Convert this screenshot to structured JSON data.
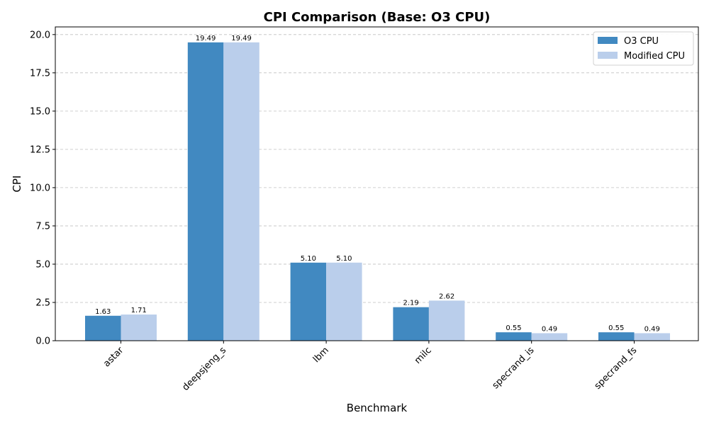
{
  "chart_data": {
    "type": "bar",
    "title": "CPI Comparison (Base: O3 CPU)",
    "xlabel": "Benchmark",
    "ylabel": "CPI",
    "categories": [
      "astar",
      "deepsjeng_s",
      "lbm",
      "milc",
      "specrand_is",
      "specrand_fs"
    ],
    "series": [
      {
        "name": "O3 CPU",
        "color": "#4189c1",
        "values": [
          1.63,
          19.49,
          5.1,
          2.19,
          0.55,
          0.55
        ],
        "labels": [
          "1.63",
          "19.49",
          "5.10",
          "2.19",
          "0.55",
          "0.55"
        ]
      },
      {
        "name": "Modified CPU",
        "color": "#baceeb",
        "values": [
          1.71,
          19.49,
          5.1,
          2.62,
          0.49,
          0.49
        ],
        "labels": [
          "1.71",
          "19.49",
          "5.10",
          "2.62",
          "0.49",
          "0.49"
        ]
      }
    ],
    "ylim": [
      0,
      20.5
    ],
    "yticks": [
      0.0,
      2.5,
      5.0,
      7.5,
      10.0,
      12.5,
      15.0,
      17.5,
      20.0
    ],
    "ytick_labels": [
      "0.0",
      "2.5",
      "5.0",
      "7.5",
      "10.0",
      "12.5",
      "15.0",
      "17.5",
      "20.0"
    ],
    "grid": "y-dashed",
    "legend_position": "top-right",
    "xtick_rotation": "45 degrees, right-aligned"
  }
}
